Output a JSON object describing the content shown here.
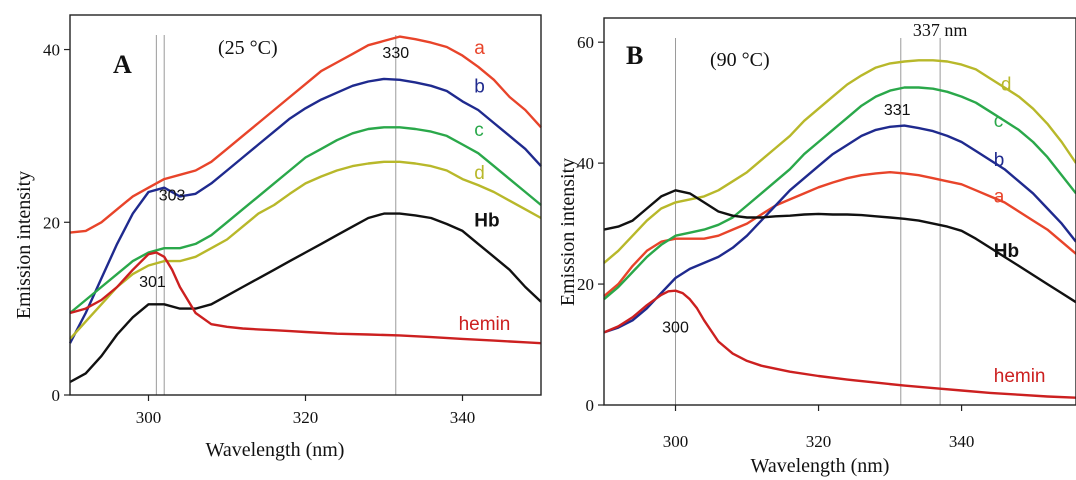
{
  "chart_data": [
    {
      "panel": "A",
      "condition": "(25 °C)",
      "type": "line",
      "xlabel": "Wavelength (nm)",
      "ylabel": "Emission intensity",
      "xlim": [
        290,
        350
      ],
      "ylim": [
        0,
        44
      ],
      "xticks": [
        300,
        320,
        340
      ],
      "yticks": [
        0,
        20,
        40
      ],
      "grid": false,
      "vlines": [
        301,
        302,
        331.5
      ],
      "annotations": [
        {
          "text": "303",
          "x": 303,
          "y": 22.5
        },
        {
          "text": "330",
          "x": 331.5,
          "y": 39.0
        },
        {
          "text": "301",
          "x": 300.5,
          "y": 12.5
        }
      ],
      "series": [
        {
          "name": "a",
          "color": "#e8442a",
          "label_at": [
            341.5,
            39.5
          ],
          "x": [
            290,
            292,
            294,
            296,
            298,
            300,
            302,
            304,
            306,
            308,
            310,
            312,
            314,
            316,
            318,
            320,
            322,
            324,
            326,
            328,
            330,
            332,
            334,
            336,
            338,
            340,
            342,
            344,
            346,
            348,
            350
          ],
          "y": [
            18.8,
            19.0,
            20.0,
            21.5,
            23.0,
            24.0,
            25.0,
            25.5,
            26.0,
            27.0,
            28.5,
            30.0,
            31.5,
            33.0,
            34.5,
            36.0,
            37.5,
            38.5,
            39.5,
            40.5,
            41.0,
            41.5,
            41.2,
            40.8,
            40.3,
            39.3,
            38.0,
            36.5,
            34.5,
            33.0,
            31.0
          ]
        },
        {
          "name": "b",
          "color": "#1f2a8e",
          "label_at": [
            341.5,
            35.0
          ],
          "x": [
            290,
            292,
            294,
            296,
            298,
            300,
            302,
            304,
            306,
            308,
            310,
            312,
            314,
            316,
            318,
            320,
            322,
            324,
            326,
            328,
            330,
            332,
            334,
            336,
            338,
            340,
            342,
            344,
            346,
            348,
            350
          ],
          "y": [
            6.0,
            9.5,
            13.5,
            17.5,
            21.0,
            23.5,
            24.0,
            23.0,
            23.3,
            24.5,
            26.0,
            27.5,
            29.0,
            30.5,
            32.0,
            33.2,
            34.2,
            35.0,
            35.8,
            36.3,
            36.6,
            36.5,
            36.2,
            35.8,
            35.2,
            34.0,
            33.0,
            31.5,
            30.0,
            28.5,
            26.5
          ]
        },
        {
          "name": "c",
          "color": "#2aa84a",
          "label_at": [
            341.5,
            30.0
          ],
          "x": [
            290,
            292,
            294,
            296,
            298,
            300,
            302,
            304,
            306,
            308,
            310,
            312,
            314,
            316,
            318,
            320,
            322,
            324,
            326,
            328,
            330,
            332,
            334,
            336,
            338,
            340,
            342,
            344,
            346,
            348,
            350
          ],
          "y": [
            9.5,
            11.0,
            12.5,
            14.0,
            15.5,
            16.5,
            17.0,
            17.0,
            17.5,
            18.5,
            20.0,
            21.5,
            23.0,
            24.5,
            26.0,
            27.5,
            28.5,
            29.5,
            30.3,
            30.8,
            31.0,
            31.0,
            30.8,
            30.5,
            30.0,
            29.0,
            28.0,
            26.5,
            25.0,
            23.5,
            22.0
          ]
        },
        {
          "name": "d",
          "color": "#b8b82a",
          "label_at": [
            341.5,
            25.0
          ],
          "x": [
            290,
            292,
            294,
            296,
            298,
            300,
            302,
            304,
            306,
            308,
            310,
            312,
            314,
            316,
            318,
            320,
            322,
            324,
            326,
            328,
            330,
            332,
            334,
            336,
            338,
            340,
            342,
            344,
            346,
            348,
            350
          ],
          "y": [
            6.5,
            8.5,
            10.5,
            12.5,
            14.0,
            15.0,
            15.5,
            15.5,
            16.0,
            17.0,
            18.0,
            19.5,
            21.0,
            22.0,
            23.3,
            24.5,
            25.3,
            26.0,
            26.5,
            26.8,
            27.0,
            27.0,
            26.8,
            26.5,
            26.0,
            25.0,
            24.3,
            23.5,
            22.5,
            21.5,
            20.5
          ]
        },
        {
          "name": "Hb",
          "color": "#111111",
          "label_at": [
            341.5,
            19.5
          ],
          "x": [
            290,
            292,
            294,
            296,
            298,
            300,
            302,
            304,
            306,
            308,
            310,
            312,
            314,
            316,
            318,
            320,
            322,
            324,
            326,
            328,
            330,
            332,
            334,
            336,
            338,
            340,
            342,
            344,
            346,
            348,
            350
          ],
          "y": [
            1.5,
            2.5,
            4.5,
            7.0,
            9.0,
            10.5,
            10.5,
            10.0,
            10.0,
            10.5,
            11.5,
            12.5,
            13.5,
            14.5,
            15.5,
            16.5,
            17.5,
            18.5,
            19.5,
            20.5,
            21.0,
            21.0,
            20.8,
            20.5,
            19.8,
            19.0,
            17.5,
            16.0,
            14.5,
            12.5,
            10.8
          ]
        },
        {
          "name": "hemin",
          "color": "#cc2020",
          "label_at": [
            339.5,
            7.5
          ],
          "x": [
            290,
            292,
            294,
            296,
            298,
            300,
            301,
            302,
            303,
            304,
            306,
            308,
            310,
            312,
            314,
            316,
            318,
            320,
            324,
            328,
            332,
            336,
            340,
            344,
            348,
            350
          ],
          "y": [
            9.5,
            10.0,
            11.0,
            12.5,
            14.5,
            16.3,
            16.5,
            16.0,
            14.5,
            12.5,
            9.5,
            8.2,
            7.9,
            7.7,
            7.6,
            7.5,
            7.4,
            7.3,
            7.1,
            7.0,
            6.9,
            6.7,
            6.5,
            6.3,
            6.1,
            6.0
          ]
        }
      ]
    },
    {
      "panel": "B",
      "condition": "(90 °C)",
      "type": "line",
      "xlabel": "Wavelength (nm)",
      "ylabel": "Emission intensity",
      "xlim": [
        290,
        356
      ],
      "ylim": [
        0,
        64
      ],
      "xticks": [
        300,
        320,
        340
      ],
      "yticks": [
        0,
        20,
        40,
        60
      ],
      "grid": false,
      "vlines": [
        300,
        331.5,
        337
      ],
      "annotations": [
        {
          "text": "337 nm",
          "x": 337,
          "y": 61.0
        },
        {
          "text": "331",
          "x": 331.0,
          "y": 48.0
        },
        {
          "text": "300",
          "x": 300,
          "y": 12.0
        }
      ],
      "series": [
        {
          "name": "a",
          "color": "#e8442a",
          "label_at": [
            344.5,
            33.5
          ],
          "x": [
            290,
            292,
            294,
            296,
            298,
            300,
            302,
            304,
            306,
            308,
            310,
            312,
            314,
            316,
            318,
            320,
            322,
            324,
            326,
            328,
            330,
            332,
            334,
            336,
            338,
            340,
            342,
            344,
            346,
            348,
            350,
            352,
            354,
            356
          ],
          "y": [
            18.0,
            20.0,
            23.0,
            25.5,
            27.0,
            27.5,
            27.5,
            27.5,
            28.0,
            29.0,
            30.0,
            31.5,
            33.0,
            34.0,
            35.0,
            36.0,
            36.8,
            37.5,
            38.0,
            38.3,
            38.5,
            38.3,
            38.0,
            37.5,
            37.0,
            36.5,
            35.5,
            34.5,
            33.5,
            32.0,
            30.5,
            29.0,
            27.0,
            25.0
          ]
        },
        {
          "name": "b",
          "color": "#1f2a8e",
          "label_at": [
            344.5,
            39.5
          ],
          "x": [
            290,
            292,
            294,
            296,
            298,
            300,
            302,
            304,
            306,
            308,
            310,
            312,
            314,
            316,
            318,
            320,
            322,
            324,
            326,
            328,
            330,
            332,
            334,
            336,
            338,
            340,
            342,
            344,
            346,
            348,
            350,
            352,
            354,
            356
          ],
          "y": [
            12.0,
            12.8,
            14.0,
            16.0,
            18.5,
            21.0,
            22.5,
            23.5,
            24.5,
            26.0,
            28.0,
            30.5,
            33.0,
            35.5,
            37.5,
            39.5,
            41.5,
            43.0,
            44.5,
            45.5,
            46.0,
            46.2,
            45.8,
            45.3,
            44.5,
            43.5,
            42.0,
            40.5,
            39.0,
            37.0,
            35.0,
            32.5,
            30.0,
            27.0
          ]
        },
        {
          "name": "c",
          "color": "#2aa84a",
          "label_at": [
            344.5,
            46.0
          ],
          "x": [
            290,
            292,
            294,
            296,
            298,
            300,
            302,
            304,
            306,
            308,
            310,
            312,
            314,
            316,
            318,
            320,
            322,
            324,
            326,
            328,
            330,
            332,
            334,
            336,
            338,
            340,
            342,
            344,
            346,
            348,
            350,
            352,
            354,
            356
          ],
          "y": [
            17.5,
            19.5,
            22.0,
            24.5,
            26.5,
            28.0,
            28.5,
            29.0,
            29.8,
            31.0,
            33.0,
            35.0,
            37.0,
            39.0,
            41.5,
            43.5,
            45.5,
            47.5,
            49.5,
            51.0,
            52.0,
            52.5,
            52.5,
            52.3,
            51.8,
            51.0,
            50.0,
            48.5,
            47.0,
            45.5,
            43.5,
            41.0,
            38.0,
            35.0
          ]
        },
        {
          "name": "d",
          "color": "#b8b82a",
          "label_at": [
            345.5,
            52.0
          ],
          "x": [
            290,
            292,
            294,
            296,
            298,
            300,
            302,
            304,
            306,
            308,
            310,
            312,
            314,
            316,
            318,
            320,
            322,
            324,
            326,
            328,
            330,
            332,
            334,
            336,
            338,
            340,
            342,
            344,
            346,
            348,
            350,
            352,
            354,
            356
          ],
          "y": [
            23.5,
            25.5,
            28.0,
            30.5,
            32.5,
            33.5,
            34.0,
            34.5,
            35.5,
            37.0,
            38.5,
            40.5,
            42.5,
            44.5,
            47.0,
            49.0,
            51.0,
            53.0,
            54.5,
            55.8,
            56.5,
            56.8,
            57.0,
            57.0,
            56.8,
            56.3,
            55.5,
            54.0,
            52.5,
            51.0,
            49.0,
            46.5,
            43.5,
            40.0
          ]
        },
        {
          "name": "Hb",
          "color": "#111111",
          "label_at": [
            344.5,
            24.5
          ],
          "x": [
            290,
            292,
            294,
            296,
            298,
            300,
            302,
            304,
            306,
            308,
            310,
            312,
            314,
            316,
            318,
            320,
            322,
            324,
            326,
            328,
            330,
            332,
            334,
            336,
            338,
            340,
            342,
            344,
            346,
            348,
            350,
            352,
            354,
            356
          ],
          "y": [
            29.0,
            29.5,
            30.5,
            32.5,
            34.5,
            35.5,
            35.0,
            33.5,
            32.0,
            31.3,
            31.0,
            31.0,
            31.2,
            31.3,
            31.5,
            31.6,
            31.5,
            31.5,
            31.4,
            31.2,
            31.0,
            30.8,
            30.5,
            30.0,
            29.5,
            28.8,
            27.5,
            26.0,
            24.5,
            23.0,
            21.5,
            20.0,
            18.5,
            17.0
          ]
        },
        {
          "name": "hemin",
          "color": "#cc2020",
          "label_at": [
            344.5,
            3.8
          ],
          "x": [
            290,
            292,
            294,
            296,
            298,
            299,
            300,
            301,
            302,
            303,
            304,
            306,
            308,
            310,
            312,
            316,
            320,
            324,
            328,
            332,
            336,
            340,
            344,
            348,
            352,
            356
          ],
          "y": [
            12.0,
            13.0,
            14.5,
            16.5,
            18.2,
            18.8,
            18.9,
            18.5,
            17.5,
            16.0,
            14.0,
            10.5,
            8.5,
            7.3,
            6.5,
            5.5,
            4.8,
            4.2,
            3.7,
            3.2,
            2.8,
            2.4,
            2.0,
            1.7,
            1.4,
            1.2
          ]
        }
      ]
    }
  ]
}
